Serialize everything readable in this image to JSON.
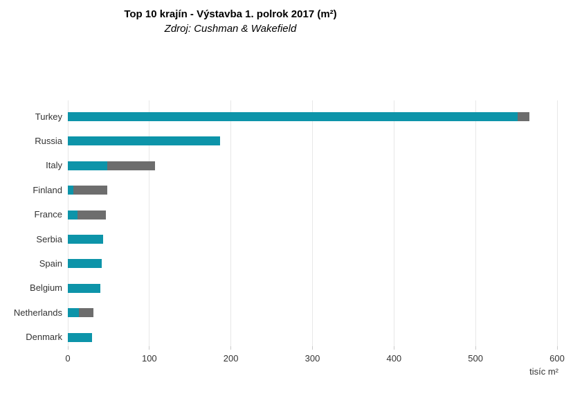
{
  "title": "Top 10 krajín - Výstavba 1. polrok 2017 (m²)",
  "subtitle": "Zdroj: Cushman & Wakefield",
  "axis": {
    "unit_label": "tisíc m²"
  },
  "colors": {
    "teal": "#0d94a9",
    "gray": "#6d6d6d",
    "gridline": "#e7e7e7",
    "tick": "#c9c9c9"
  },
  "chart_data": {
    "type": "bar",
    "orientation": "horizontal",
    "stacked": true,
    "title": "Top 10 krajín - Výstavba 1. polrok 2017 (m²)",
    "subtitle": "Zdroj: Cushman & Wakefield",
    "categories": [
      "Turkey",
      "Russia",
      "Italy",
      "Finland",
      "France",
      "Serbia",
      "Spain",
      "Belgium",
      "Netherlands",
      "Denmark"
    ],
    "series": [
      {
        "name": "teal-segment",
        "color": "#0d94a9",
        "values": [
          552,
          187,
          48,
          7,
          12,
          43,
          42,
          40,
          14,
          30
        ]
      },
      {
        "name": "gray-segment",
        "color": "#6d6d6d",
        "values": [
          14,
          0,
          59,
          41,
          35,
          0,
          0,
          0,
          17,
          0
        ]
      }
    ],
    "totals": [
      566,
      187,
      107,
      48,
      47,
      43,
      42,
      40,
      31,
      30
    ],
    "xlabel": "tisíc m²",
    "ylabel": "",
    "xlim": [
      0,
      600
    ],
    "x_ticks": [
      0,
      100,
      200,
      300,
      400,
      500,
      600
    ],
    "grid": true,
    "legend": "none"
  }
}
